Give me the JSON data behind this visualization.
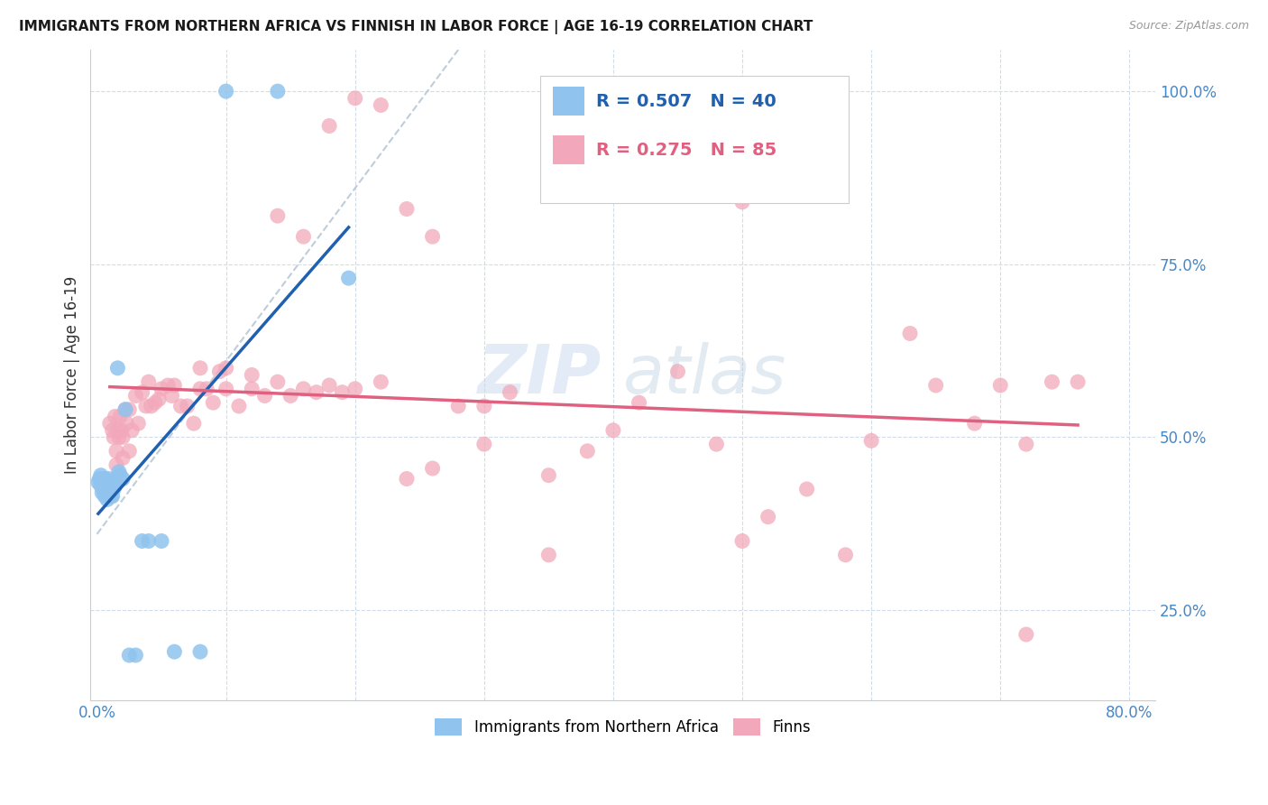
{
  "title": "IMMIGRANTS FROM NORTHERN AFRICA VS FINNISH IN LABOR FORCE | AGE 16-19 CORRELATION CHART",
  "source": "Source: ZipAtlas.com",
  "ylabel": "In Labor Force | Age 16-19",
  "xlim": [
    -0.005,
    0.82
  ],
  "ylim": [
    0.12,
    1.06
  ],
  "y_ticks": [
    0.25,
    0.5,
    0.75,
    1.0
  ],
  "y_tick_labels": [
    "25.0%",
    "50.0%",
    "75.0%",
    "100.0%"
  ],
  "x_ticks": [
    0.0,
    0.1,
    0.2,
    0.3,
    0.4,
    0.5,
    0.6,
    0.7,
    0.8
  ],
  "x_tick_labels": [
    "0.0%",
    "",
    "",
    "",
    "",
    "",
    "",
    "",
    "80.0%"
  ],
  "blue_color": "#90C4EE",
  "pink_color": "#F2A8BA",
  "blue_line_color": "#2060B0",
  "pink_line_color": "#E06080",
  "ref_line_color": "#b8c8d8",
  "series1_label": "Immigrants from Northern Africa",
  "series2_label": "Finns",
  "legend_text1": "R = 0.507   N = 40",
  "legend_text2": "R = 0.275   N = 85",
  "blue_x": [
    0.001,
    0.002,
    0.003,
    0.003,
    0.004,
    0.004,
    0.005,
    0.005,
    0.006,
    0.006,
    0.006,
    0.007,
    0.007,
    0.008,
    0.008,
    0.009,
    0.009,
    0.01,
    0.01,
    0.011,
    0.011,
    0.012,
    0.013,
    0.014,
    0.015,
    0.016,
    0.017,
    0.018,
    0.02,
    0.022,
    0.025,
    0.03,
    0.035,
    0.04,
    0.05,
    0.06,
    0.08,
    0.1,
    0.14,
    0.195
  ],
  "blue_y": [
    0.435,
    0.44,
    0.43,
    0.445,
    0.42,
    0.435,
    0.425,
    0.44,
    0.415,
    0.43,
    0.44,
    0.42,
    0.435,
    0.41,
    0.425,
    0.415,
    0.44,
    0.42,
    0.43,
    0.415,
    0.43,
    0.415,
    0.425,
    0.43,
    0.44,
    0.6,
    0.45,
    0.445,
    0.44,
    0.54,
    0.185,
    0.185,
    0.35,
    0.35,
    0.35,
    0.19,
    0.19,
    1.0,
    1.0,
    0.73
  ],
  "pink_x": [
    0.01,
    0.012,
    0.013,
    0.014,
    0.015,
    0.016,
    0.017,
    0.018,
    0.019,
    0.02,
    0.022,
    0.023,
    0.025,
    0.027,
    0.03,
    0.032,
    0.035,
    0.038,
    0.04,
    0.042,
    0.045,
    0.048,
    0.05,
    0.055,
    0.058,
    0.06,
    0.065,
    0.07,
    0.075,
    0.08,
    0.085,
    0.09,
    0.095,
    0.1,
    0.11,
    0.12,
    0.13,
    0.14,
    0.15,
    0.16,
    0.17,
    0.18,
    0.19,
    0.2,
    0.22,
    0.24,
    0.26,
    0.28,
    0.3,
    0.32,
    0.35,
    0.38,
    0.4,
    0.42,
    0.45,
    0.48,
    0.5,
    0.52,
    0.55,
    0.58,
    0.6,
    0.63,
    0.65,
    0.68,
    0.7,
    0.72,
    0.74,
    0.76,
    0.3,
    0.35,
    0.015,
    0.02,
    0.025,
    0.08,
    0.1,
    0.12,
    0.14,
    0.16,
    0.18,
    0.2,
    0.22,
    0.24,
    0.26,
    0.5,
    0.72
  ],
  "pink_y": [
    0.52,
    0.51,
    0.5,
    0.53,
    0.48,
    0.51,
    0.5,
    0.53,
    0.51,
    0.5,
    0.54,
    0.52,
    0.54,
    0.51,
    0.56,
    0.52,
    0.565,
    0.545,
    0.58,
    0.545,
    0.55,
    0.555,
    0.57,
    0.575,
    0.56,
    0.575,
    0.545,
    0.545,
    0.52,
    0.57,
    0.57,
    0.55,
    0.595,
    0.57,
    0.545,
    0.57,
    0.56,
    0.58,
    0.56,
    0.57,
    0.565,
    0.575,
    0.565,
    0.57,
    0.58,
    0.44,
    0.455,
    0.545,
    0.545,
    0.565,
    0.445,
    0.48,
    0.51,
    0.55,
    0.595,
    0.49,
    0.35,
    0.385,
    0.425,
    0.33,
    0.495,
    0.65,
    0.575,
    0.52,
    0.575,
    0.49,
    0.58,
    0.58,
    0.49,
    0.33,
    0.46,
    0.47,
    0.48,
    0.6,
    0.6,
    0.59,
    0.82,
    0.79,
    0.95,
    0.99,
    0.98,
    0.83,
    0.79,
    0.84,
    0.215
  ]
}
